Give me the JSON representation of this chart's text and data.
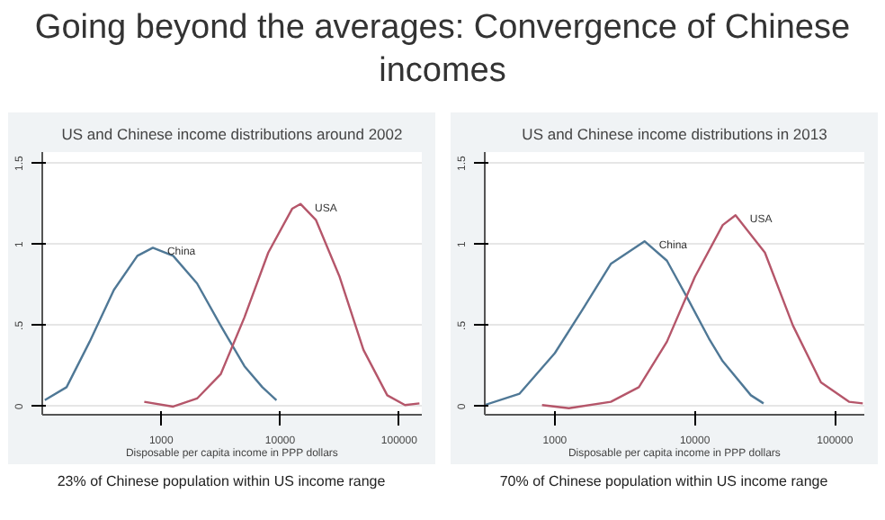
{
  "chart_data": [
    {
      "type": "line",
      "title": "US and Chinese income distributions around 2002",
      "xlabel": "Disposable per capita income in PPP dollars",
      "log": "x",
      "grid": "y",
      "xlim": [
        100,
        155000
      ],
      "xticks": [
        1000,
        10000,
        100000
      ],
      "ylim": [
        -0.05,
        1.57
      ],
      "yticks": [
        0,
        {
          "value": 0.5,
          "label": ".5"
        },
        1,
        1.5
      ],
      "annotations": [
        "Going beyond the averages: Convergence of Chinese incomes",
        "23% of Chinese population within US income range"
      ],
      "series": [
        {
          "name": "China",
          "color": "#4f7896",
          "x": [
            105,
            160,
            250,
            400,
            630,
            850,
            1260,
            2000,
            3160,
            5000,
            7080,
            9300
          ],
          "values": [
            0.04,
            0.12,
            0.4,
            0.72,
            0.93,
            0.98,
            0.93,
            0.76,
            0.5,
            0.25,
            0.12,
            0.04
          ]
        },
        {
          "name": "USA",
          "color": "#b5566a",
          "x": [
            720,
            1260,
            2000,
            3160,
            5000,
            7940,
            12600,
            14800,
            20000,
            31600,
            50100,
            79400,
            112000,
            148000
          ],
          "values": [
            0.03,
            0.0,
            0.05,
            0.2,
            0.55,
            0.95,
            1.22,
            1.25,
            1.15,
            0.8,
            0.35,
            0.07,
            0.01,
            0.02
          ]
        }
      ]
    },
    {
      "type": "line",
      "title": "US and Chinese income distributions in 2013",
      "xlabel": "Disposable per capita income in PPP dollars",
      "log": "x",
      "grid": "y",
      "xlim": [
        316,
        162000
      ],
      "xticks": [
        1000,
        10000,
        100000
      ],
      "ylim": [
        -0.05,
        1.57
      ],
      "yticks": [
        0,
        {
          "value": 0.5,
          "label": ".5"
        },
        1,
        1.5
      ],
      "annotations": [
        "70% of Chinese population within US income range"
      ],
      "series": [
        {
          "name": "China",
          "color": "#4f7896",
          "x": [
            316,
            560,
            1000,
            1580,
            2510,
            4370,
            6310,
            8710,
            12600,
            15800,
            25100,
            30900
          ],
          "values": [
            0.01,
            0.08,
            0.33,
            0.6,
            0.88,
            1.02,
            0.9,
            0.68,
            0.42,
            0.28,
            0.07,
            0.02
          ]
        },
        {
          "name": "USA",
          "color": "#b5566a",
          "x": [
            810,
            1260,
            2510,
            3980,
            6310,
            10000,
            15800,
            19500,
            31600,
            50100,
            79400,
            126000,
            158000
          ],
          "values": [
            0.01,
            -0.01,
            0.03,
            0.12,
            0.4,
            0.8,
            1.12,
            1.18,
            0.95,
            0.5,
            0.15,
            0.03,
            0.02
          ]
        }
      ]
    }
  ]
}
